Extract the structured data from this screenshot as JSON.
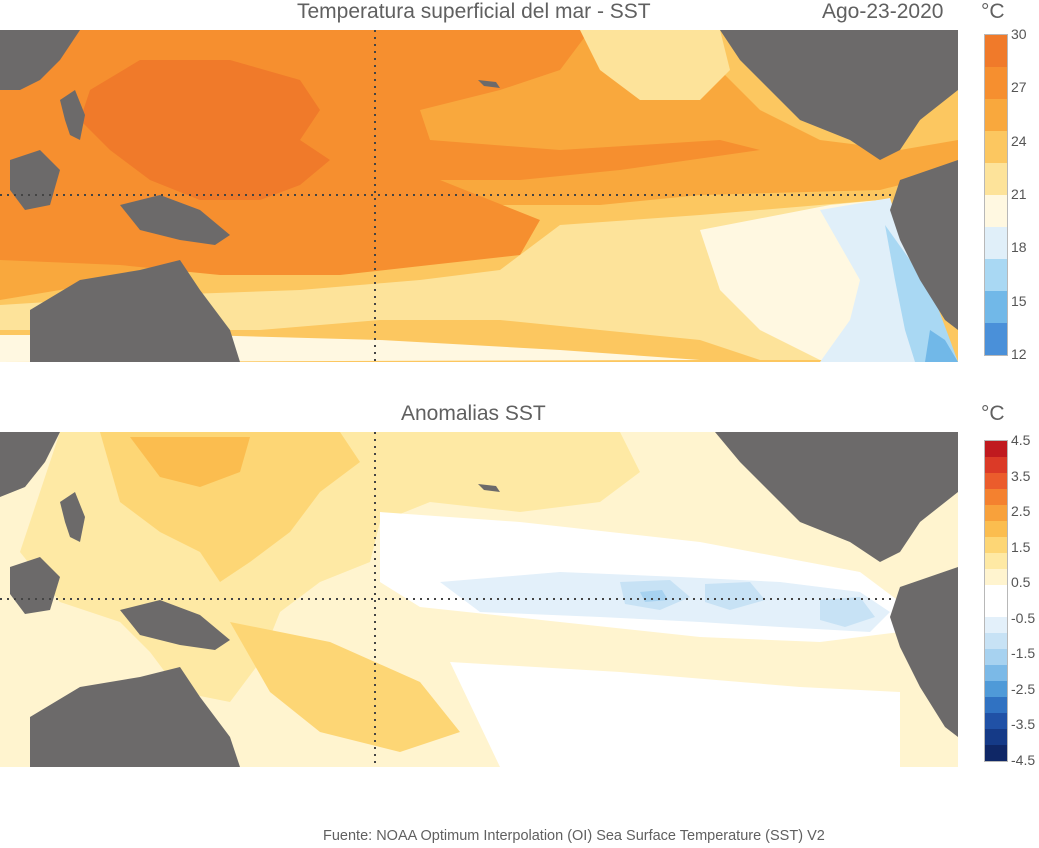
{
  "top_panel": {
    "title": "Temperatura superficial del mar - SST",
    "date": "Ago-23-2020",
    "unit": "°C",
    "colorbar": {
      "colors": [
        "#f07a2a",
        "#f68f2f",
        "#f9a83d",
        "#fcc760",
        "#fde39a",
        "#fff8e1",
        "#e0eff9",
        "#a9d8f3",
        "#71b8e8",
        "#4a90d9"
      ],
      "ticks": [
        "30",
        "27",
        "24",
        "21",
        "18",
        "15",
        "12"
      ]
    }
  },
  "bottom_panel": {
    "title": "Anomalias SST",
    "unit": "°C",
    "colorbar": {
      "colors": [
        "#c01a1f",
        "#db3a27",
        "#eb5c2c",
        "#f4812f",
        "#f8a13b",
        "#fbbd4f",
        "#fdd675",
        "#fee9a4",
        "#fff4cf",
        "#ffffff",
        "#ffffff",
        "#e3f0fa",
        "#c7e2f5",
        "#a7d2f0",
        "#7bb9e7",
        "#4f9ad8",
        "#3072c2",
        "#2051a6",
        "#153a87",
        "#0f2766"
      ],
      "ticks": [
        "4.5",
        "3.5",
        "2.5",
        "1.5",
        "0.5",
        "-0.5",
        "-1.5",
        "-2.5",
        "-3.5",
        "-4.5"
      ]
    }
  },
  "footer": "Fuente: NOAA Optimum Interpolation (OI) Sea Surface Temperature (SST) V2"
}
